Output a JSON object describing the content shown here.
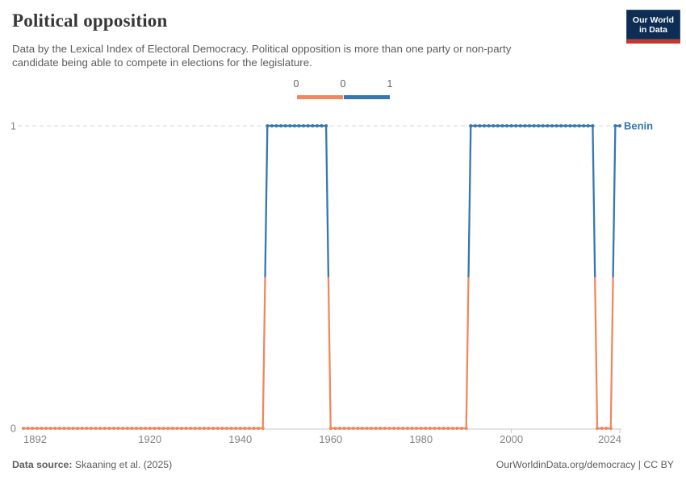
{
  "header": {
    "title": "Political opposition",
    "subtitle_lines": [
      "Data by the Lexical Index of Electoral Democracy. Political opposition is more than one party or non-party",
      "candidate being able to compete in elections for the legislature."
    ],
    "logo": {
      "line1": "Our World",
      "line2": "in Data"
    }
  },
  "legend": {
    "labels": [
      "0",
      "0",
      "1"
    ]
  },
  "chart_data": {
    "type": "line",
    "step": true,
    "title": "Political opposition",
    "entity": "Benin",
    "entity_label": "Benin",
    "xlim": [
      1892,
      2024
    ],
    "ylim": [
      0,
      1
    ],
    "x_ticks": [
      1892,
      1920,
      1940,
      1960,
      1980,
      2000,
      2024
    ],
    "y_ticks": [
      0,
      1
    ],
    "grid": "dashed gridline at y=1, solid baseline at y=0",
    "legend_position": "top-center",
    "colors": {
      "value0": "#f0885f",
      "value1": "#3577ae",
      "grid": "#d9d9d9",
      "axis": "#c6c6c6",
      "axis_text": "#848484"
    },
    "series": [
      {
        "name": "Benin",
        "segments": [
          {
            "from": 1892,
            "to": 1945,
            "value": 0
          },
          {
            "from": 1946,
            "to": 1959,
            "value": 1
          },
          {
            "from": 1960,
            "to": 1990,
            "value": 0
          },
          {
            "from": 1991,
            "to": 2018,
            "value": 1
          },
          {
            "from": 2019,
            "to": 2022,
            "value": 0
          },
          {
            "from": 2023,
            "to": 2024,
            "value": 1
          }
        ]
      }
    ]
  },
  "footer": {
    "source_label": "Data source:",
    "source_text": "Skaaning et al. (2025)",
    "link": "OurWorldinData.org/democracy | CC BY"
  }
}
